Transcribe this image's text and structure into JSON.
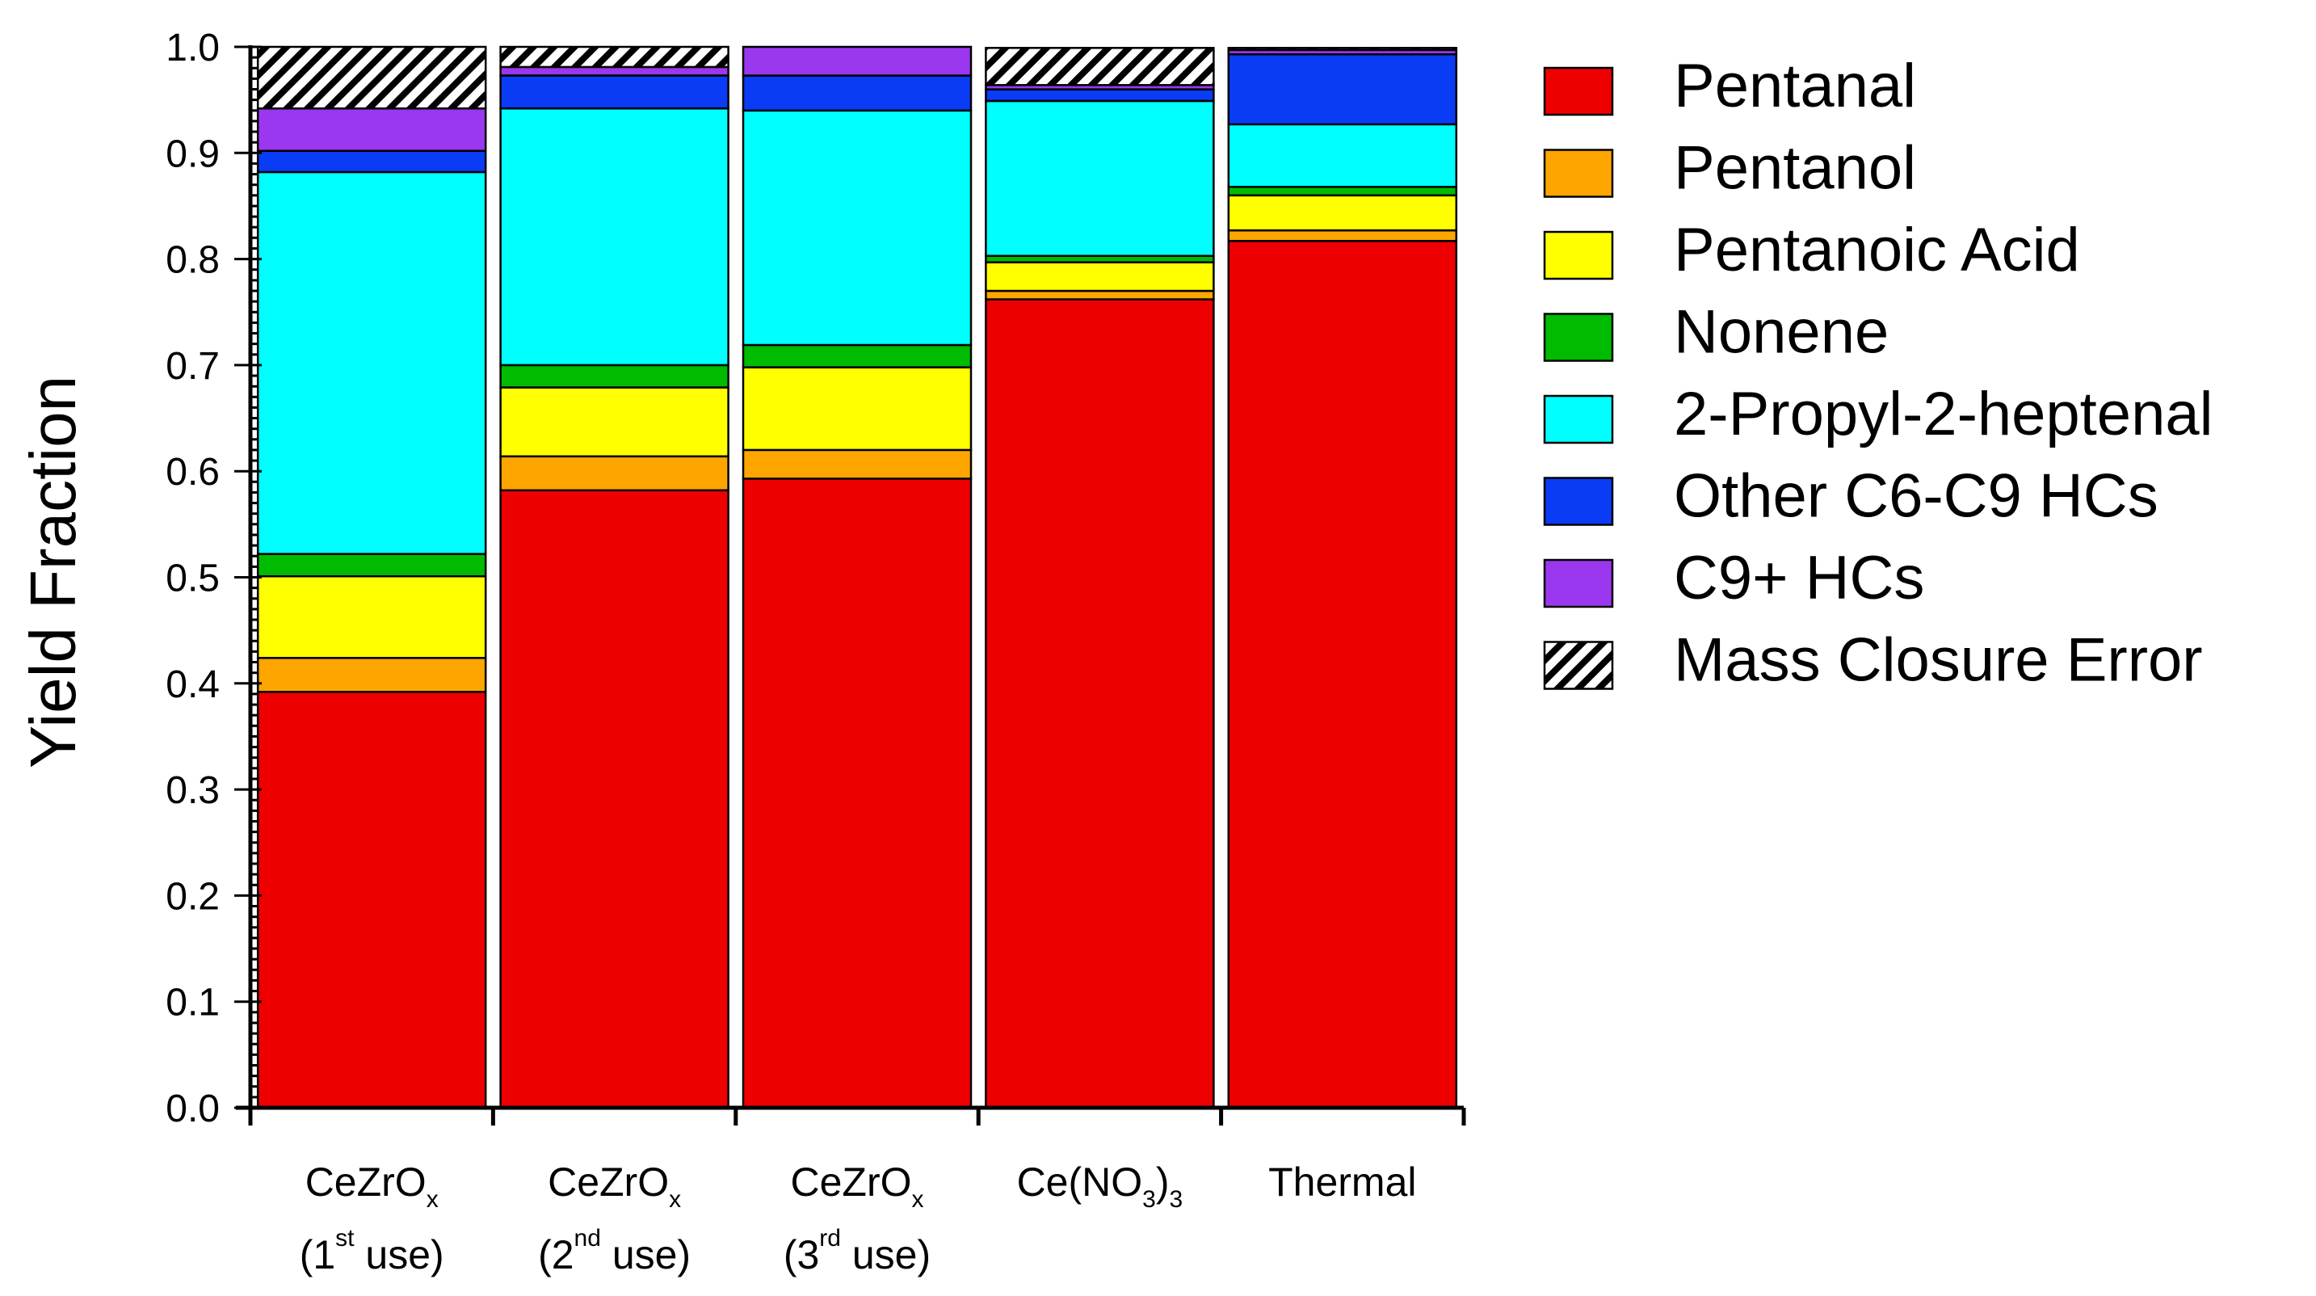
{
  "chart_data": {
    "type": "bar",
    "stacked": true,
    "title": "",
    "xlabel": "",
    "ylabel": "Yield Fraction",
    "ylim": [
      0,
      1.0
    ],
    "yticks": [
      "0.0",
      "0.1",
      "0.2",
      "0.3",
      "0.4",
      "0.5",
      "0.6",
      "0.7",
      "0.8",
      "0.9",
      "1.0"
    ],
    "categories": [
      {
        "base": "CeZrO",
        "sub": "x",
        "paren_open": "(1",
        "sup": "st",
        "suffix": " use)"
      },
      {
        "base": "CeZrO",
        "sub": "x",
        "paren_open": "(2",
        "sup": "nd",
        "suffix": " use)"
      },
      {
        "base": "CeZrO",
        "sub": "x",
        "paren_open": "(3",
        "sup": "rd",
        "suffix": " use)"
      },
      {
        "base": "Ce(NO",
        "sub": "3",
        "suffix_mid": ")",
        "sub2": "3"
      },
      {
        "base": "Thermal"
      }
    ],
    "legend_position": "right",
    "series": [
      {
        "name": "Pentanal",
        "color": "#ee0000",
        "pattern": "solid",
        "values": [
          0.392,
          0.582,
          0.593,
          0.762,
          0.817
        ]
      },
      {
        "name": "Pentanol",
        "color": "#ffa500",
        "pattern": "solid",
        "values": [
          0.032,
          0.032,
          0.027,
          0.008,
          0.01
        ]
      },
      {
        "name": "Pentanoic Acid",
        "color": "#ffff00",
        "pattern": "solid",
        "values": [
          0.077,
          0.065,
          0.078,
          0.027,
          0.033
        ]
      },
      {
        "name": "Nonene",
        "color": "#00bb00",
        "pattern": "solid",
        "values": [
          0.021,
          0.021,
          0.021,
          0.006,
          0.008
        ]
      },
      {
        "name": "2-Propyl-2-heptenal",
        "color": "#00ffff",
        "pattern": "solid",
        "values": [
          0.36,
          0.242,
          0.221,
          0.146,
          0.059
        ]
      },
      {
        "name": "Other C6-C9 HCs",
        "color": "#0a3bf5",
        "pattern": "solid",
        "values": [
          0.02,
          0.031,
          0.033,
          0.011,
          0.066
        ]
      },
      {
        "name": "C9+ HCs",
        "color": "#9b37ee",
        "pattern": "solid",
        "values": [
          0.04,
          0.008,
          0.029,
          0.004,
          0.004
        ]
      },
      {
        "name": "Mass Closure Error",
        "color": "#000000",
        "pattern": "hatch",
        "values": [
          0.058,
          0.019,
          0.0,
          0.035,
          0.002
        ]
      }
    ]
  }
}
